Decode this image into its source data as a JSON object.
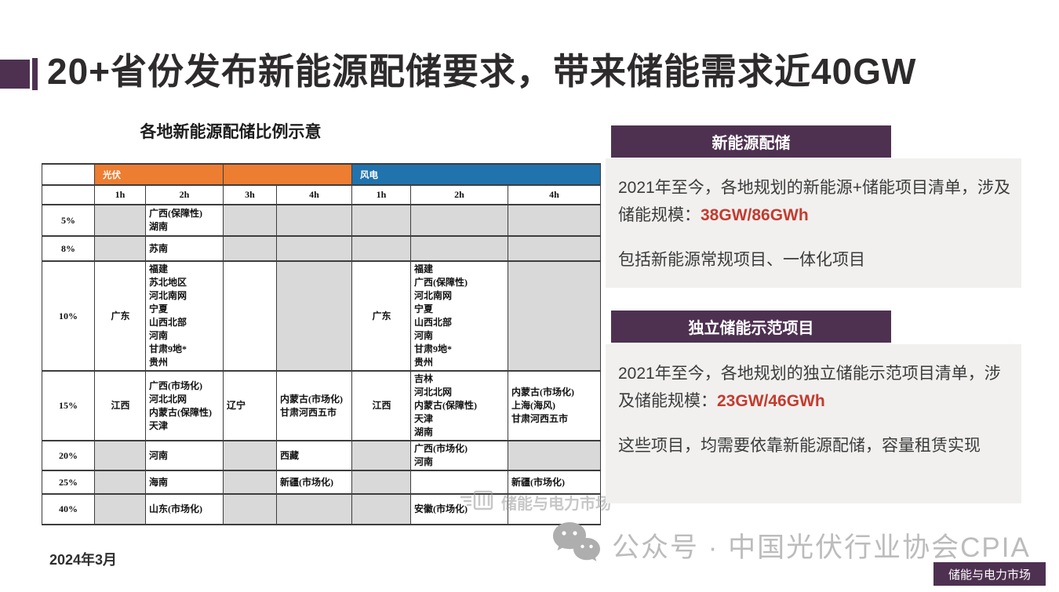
{
  "title": "20+省份发布新能源配储要求，带来储能需求近40GW",
  "colors": {
    "accent_purple": "#4e3151",
    "pv_orange": "#ed7d31",
    "wind_blue": "#2173ae",
    "na_gray": "#d9d9d9",
    "value_red": "#c43b2e"
  },
  "table": {
    "title": "各地新能源配储比例示意",
    "group_headers": [
      {
        "label": "光伏",
        "span": 2,
        "type": "pv"
      },
      {
        "label": "",
        "span": 2,
        "type": "pv"
      },
      {
        "label": "风电",
        "span": 3,
        "type": "wind"
      }
    ],
    "duration_headers": [
      "1h",
      "2h",
      "3h",
      "4h",
      "1h",
      "2h",
      "4h"
    ],
    "rows": [
      {
        "pct": "5%",
        "cells": [
          {
            "items": [],
            "na": true
          },
          {
            "items": [
              "广西(保障性)",
              "湖南"
            ],
            "na": false
          },
          {
            "items": [],
            "na": true
          },
          {
            "items": [],
            "na": true
          },
          {
            "items": [],
            "na": true
          },
          {
            "items": [],
            "na": true
          },
          {
            "items": [],
            "na": true
          }
        ]
      },
      {
        "pct": "8%",
        "cells": [
          {
            "items": [],
            "na": true
          },
          {
            "items": [
              "苏南"
            ],
            "na": false
          },
          {
            "items": [],
            "na": true
          },
          {
            "items": [],
            "na": true
          },
          {
            "items": [],
            "na": true
          },
          {
            "items": [],
            "na": true
          },
          {
            "items": [],
            "na": true
          }
        ]
      },
      {
        "pct": "10%",
        "cells": [
          {
            "items": [
              "广东"
            ],
            "na": false
          },
          {
            "items": [
              "福建",
              "苏北地区",
              "河北南网",
              "宁夏",
              "山西北部",
              "河南",
              "甘肃9地*",
              "贵州"
            ],
            "na": false
          },
          {
            "items": [],
            "na": false
          },
          {
            "items": [],
            "na": true
          },
          {
            "items": [
              "广东"
            ],
            "na": false
          },
          {
            "items": [
              "福建",
              "广西(保障性)",
              "河北南网",
              "宁夏",
              "山西北部",
              "河南",
              "甘肃9地*",
              "贵州"
            ],
            "na": false
          },
          {
            "items": [],
            "na": true
          }
        ]
      },
      {
        "pct": "15%",
        "cells": [
          {
            "items": [
              "江西"
            ],
            "na": false
          },
          {
            "items": [
              "广西(市场化)",
              "河北北网",
              "内蒙古(保障性)",
              "天津"
            ],
            "na": false
          },
          {
            "items": [
              "辽宁"
            ],
            "na": false
          },
          {
            "items": [
              "内蒙古(市场化)",
              "甘肃河西五市"
            ],
            "na": false
          },
          {
            "items": [
              "江西"
            ],
            "na": false
          },
          {
            "items": [
              "吉林",
              "河北北网",
              "内蒙古(保障性)",
              "天津",
              "湖南"
            ],
            "na": false
          },
          {
            "items": [
              "内蒙古(市场化)",
              "上海(海风)",
              "甘肃河西五市"
            ],
            "na": false
          }
        ]
      },
      {
        "pct": "20%",
        "cells": [
          {
            "items": [],
            "na": true
          },
          {
            "items": [
              "河南"
            ],
            "na": false
          },
          {
            "items": [],
            "na": true
          },
          {
            "items": [
              "西藏"
            ],
            "na": false
          },
          {
            "items": [],
            "na": true
          },
          {
            "items": [
              "广西(市场化)",
              "河南"
            ],
            "na": false
          },
          {
            "items": [],
            "na": true
          }
        ]
      },
      {
        "pct": "25%",
        "cells": [
          {
            "items": [],
            "na": true
          },
          {
            "items": [
              "海南"
            ],
            "na": false
          },
          {
            "items": [],
            "na": true
          },
          {
            "items": [
              "新疆(市场化)"
            ],
            "na": false
          },
          {
            "items": [],
            "na": true
          },
          {
            "items": [],
            "na": false
          },
          {
            "items": [
              "新疆(市场化)"
            ],
            "na": false
          }
        ]
      },
      {
        "pct": "40%",
        "cells": [
          {
            "items": [],
            "na": true
          },
          {
            "items": [
              "山东(市场化)"
            ],
            "na": false
          },
          {
            "items": [],
            "na": true
          },
          {
            "items": [],
            "na": true
          },
          {
            "items": [],
            "na": true
          },
          {
            "items": [
              "安徽(市场化)"
            ],
            "na": false
          },
          {
            "items": [],
            "na": false
          }
        ]
      }
    ]
  },
  "panels": [
    {
      "header": "新能源配储",
      "para1_prefix": "2021年至今，各地规划的新能源+储能项目清单，涉及储能规模：",
      "para1_value": "38GW/86GWh",
      "para2": "包括新能源常规项目、一体化项目"
    },
    {
      "header": "独立储能示范项目",
      "para1_prefix": "2021年至今，各地规划的独立储能示范项目清单，涉及储能规模：",
      "para1_value": "23GW/46GWh",
      "para2": "这些项目，均需要依靠新能源配储，容量租赁实现"
    }
  ],
  "footer": {
    "date": "2024年3月",
    "wechat_watermark": "公众号 · 中国光伏行业协会CPIA",
    "brand_badge": "储能与电力市场",
    "table_watermark": "储能与电力市场"
  }
}
